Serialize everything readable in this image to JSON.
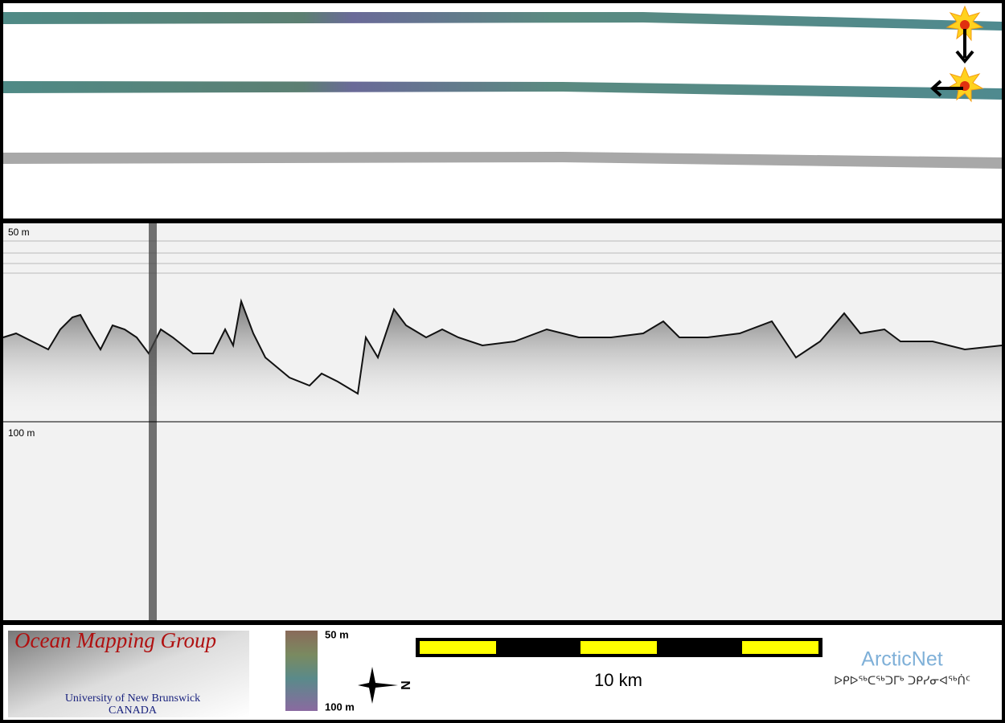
{
  "echogram": {
    "depth_labels": [
      "50 m",
      "100 m"
    ]
  },
  "logo": {
    "title": "Ocean Mapping Group",
    "university": "University of New Brunswick",
    "country": "CANADA"
  },
  "colorbar": {
    "top_label": "50 m",
    "bottom_label": "100 m"
  },
  "compass": {
    "label": "N"
  },
  "scale_bar": {
    "label": "10 km"
  },
  "partner": {
    "name": "ArcticNet",
    "inuktitut": "ᐅᑭᐅᖅᑕᖅᑐᒥᒃ ᑐᑭᓯᓂᐊᖅᑏᑦ"
  }
}
